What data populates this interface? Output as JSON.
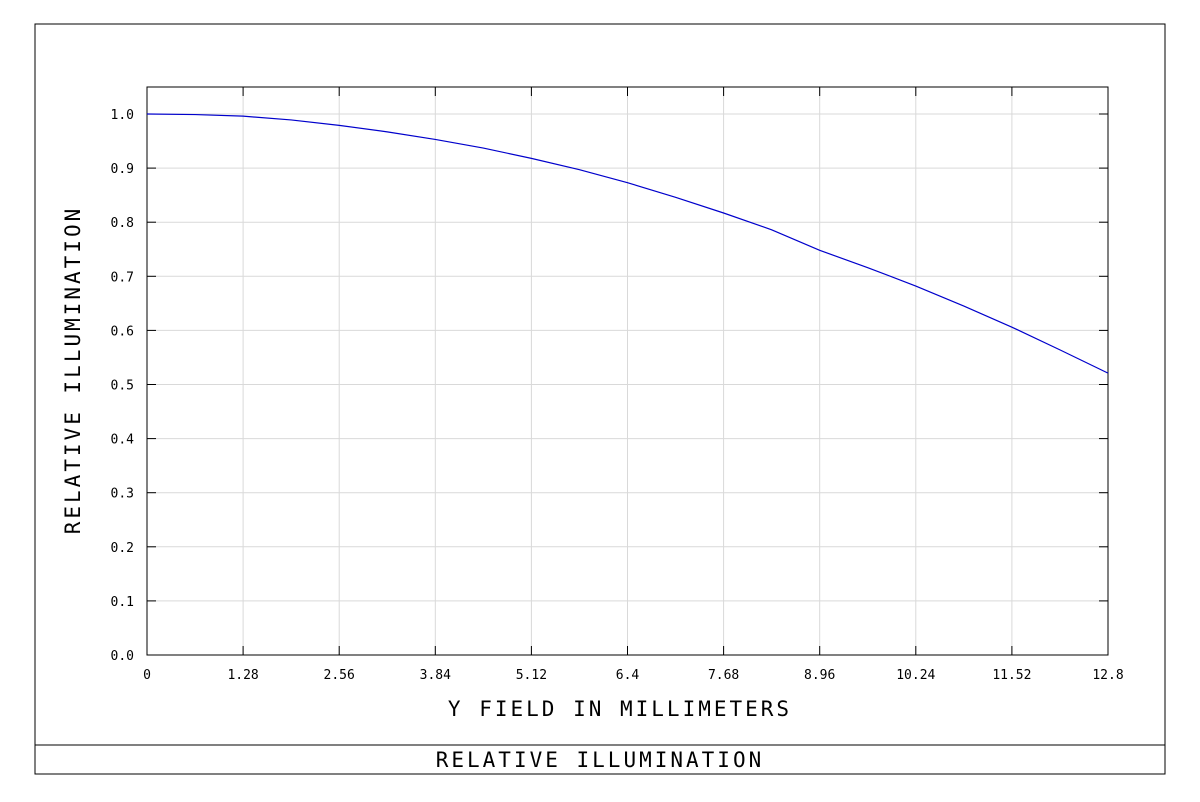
{
  "chart_data": {
    "type": "line",
    "title": "RELATIVE ILLUMINATION",
    "xlabel": "Y FIELD IN MILLIMETERS",
    "ylabel": "RELATIVE ILLUMINATION",
    "xlim": [
      0,
      12.8
    ],
    "ylim": [
      0.0,
      1.0
    ],
    "x_tick_labels": [
      "0",
      "1.28",
      "2.56",
      "3.84",
      "5.12",
      "6.4",
      "7.68",
      "8.96",
      "10.24",
      "11.52",
      "12.8"
    ],
    "y_tick_labels": [
      "0.0",
      "0.1",
      "0.2",
      "0.3",
      "0.4",
      "0.5",
      "0.6",
      "0.7",
      "0.8",
      "0.9",
      "1.0"
    ],
    "grid": true,
    "series": [
      {
        "color": "#0000cc",
        "x": [
          0,
          0.64,
          1.28,
          1.92,
          2.56,
          3.2,
          3.84,
          4.48,
          5.12,
          5.76,
          6.4,
          7.04,
          7.68,
          8.32,
          8.96,
          9.6,
          10.24,
          10.88,
          11.52,
          12.16,
          12.8
        ],
        "y": [
          1.0,
          0.999,
          0.996,
          0.989,
          0.979,
          0.967,
          0.953,
          0.937,
          0.918,
          0.897,
          0.873,
          0.846,
          0.817,
          0.786,
          0.748,
          0.716,
          0.682,
          0.645,
          0.606,
          0.564,
          0.521
        ]
      }
    ]
  }
}
